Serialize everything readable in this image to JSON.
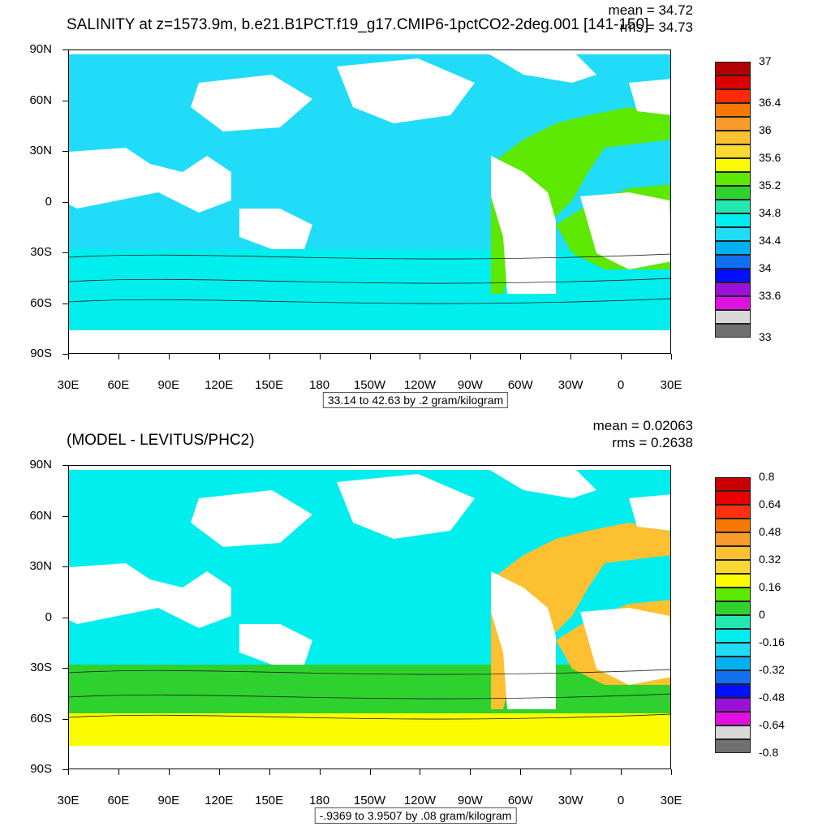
{
  "top": {
    "title": "SALINITY at z=1573.9m, b.e21.B1PCT.f19_g17.CMIP6-1pctCO2-2deg.001 [141-150]",
    "mean": "mean = 34.72",
    "rms": "rms = 34.73",
    "info": "33.14 to 42.63 by .2 gram/kilogram",
    "colorbar": {
      "colors": [
        "#b30000",
        "#dd0000",
        "#ff2a00",
        "#f77800",
        "#f99a2b",
        "#fcc030",
        "#fdd830",
        "#fbfb00",
        "#5de800",
        "#2ed12e",
        "#22e8b0",
        "#00eeee",
        "#20dcf8",
        "#00b0f0",
        "#1070f0",
        "#0010ff",
        "#9a10d8",
        "#e010e0",
        "#d8d8d8",
        "#707070"
      ],
      "labels": [
        "37",
        "36.4",
        "36",
        "35.6",
        "35.2",
        "34.8",
        "34.4",
        "34",
        "33.6",
        "33"
      ],
      "label_rows": [
        0,
        3,
        5,
        7,
        9,
        11,
        13,
        15,
        17,
        20
      ]
    }
  },
  "bottom": {
    "title": "(MODEL - LEVITUS/PHC2)",
    "mean": "mean = 0.02063",
    "rms": "rms = 0.2638",
    "info": "-.9369 to 3.9507 by .08 gram/kilogram",
    "colorbar": {
      "colors": [
        "#c80000",
        "#e80000",
        "#ff3010",
        "#f77800",
        "#f99a2b",
        "#fcc030",
        "#fdd830",
        "#fbfb00",
        "#5de800",
        "#2ed12e",
        "#22e8b0",
        "#00eeee",
        "#20dcf8",
        "#00b0f0",
        "#1070f0",
        "#0010ff",
        "#9a10d8",
        "#e010e0",
        "#d8d8d8",
        "#707070"
      ],
      "labels": [
        "0.8",
        "0.64",
        "0.48",
        "0.32",
        "0.16",
        "0",
        "-0.16",
        "-0.32",
        "-0.48",
        "-0.64",
        "-0.8"
      ],
      "label_rows": [
        0,
        2,
        4,
        6,
        8,
        10,
        12,
        14,
        16,
        18,
        20
      ]
    }
  },
  "axes": {
    "lat_labels": [
      "90N",
      "60N",
      "30N",
      "0",
      "30S",
      "60S",
      "90S"
    ],
    "lon_labels": [
      "30E",
      "60E",
      "90E",
      "120E",
      "150E",
      "180",
      "150W",
      "120W",
      "90W",
      "60W",
      "30W",
      "0",
      "30E"
    ]
  },
  "colors": {
    "land": "#ffffff",
    "top_pacific": "#20dcf8",
    "top_atlantic": "#5de800",
    "top_southern": "#00eeee",
    "bottom_pacific": "#00eeee",
    "bottom_atlantic": "#fcc030",
    "bottom_southern": "#2ed12e",
    "bottom_south_edge": "#fbfb00"
  }
}
